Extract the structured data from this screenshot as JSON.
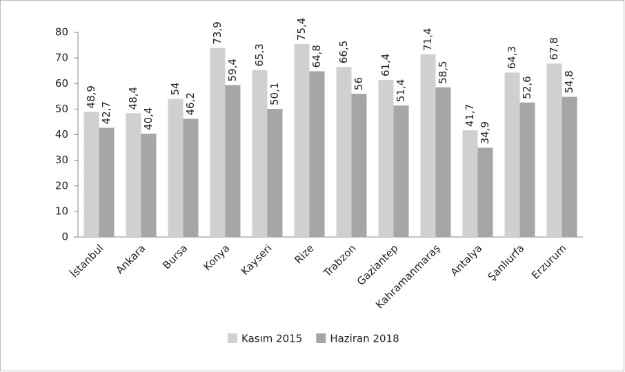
{
  "chart_data": {
    "type": "bar",
    "categories": [
      "İstanbul",
      "Ankara",
      "Bursa",
      "Konya",
      "Kayseri",
      "Rize",
      "Trabzon",
      "Gaziantep",
      "Kahramanmaraş",
      "Antalya",
      "Şanlıurfa",
      "Erzurum"
    ],
    "series": [
      {
        "name": "Kasım 2015",
        "color": "#d0d0d0",
        "values": [
          48.9,
          48.4,
          54,
          73.9,
          65.3,
          75.4,
          66.5,
          61.4,
          71.4,
          41.7,
          64.3,
          67.8
        ],
        "value_labels": [
          "48,9",
          "48,4",
          "54",
          "73,9",
          "65,3",
          "75,4",
          "66,5",
          "61,4",
          "71,4",
          "41,7",
          "64,3",
          "67,8"
        ]
      },
      {
        "name": "Haziran 2018",
        "color": "#a6a6a6",
        "values": [
          42.7,
          40.4,
          46.2,
          59.4,
          50.1,
          64.8,
          56,
          51.4,
          58.5,
          34.9,
          52.6,
          54.8
        ],
        "value_labels": [
          "42,7",
          "40,4",
          "46,2",
          "59,4",
          "50,1",
          "64,8",
          "56",
          "51,4",
          "58,5",
          "34,9",
          "52,6",
          "54,8"
        ]
      }
    ],
    "ylim": [
      0,
      80
    ],
    "yticks": [
      0,
      10,
      20,
      30,
      40,
      50,
      60,
      70,
      80
    ],
    "grid": false,
    "legend": "bottom"
  }
}
